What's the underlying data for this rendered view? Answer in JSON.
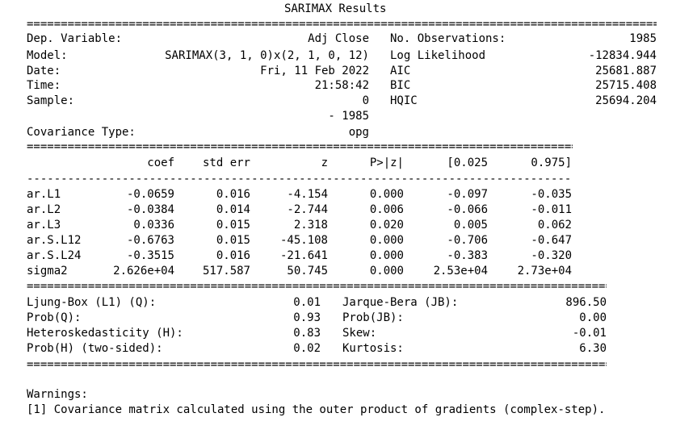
{
  "title": "SARIMAX Results",
  "summary": {
    "left": [
      {
        "label": "Dep. Variable:",
        "value": "Adj Close"
      },
      {
        "label": "Model:",
        "value": "SARIMAX(3, 1, 0)x(2, 1, 0, 12)"
      },
      {
        "label": "Date:",
        "value": "Fri, 11 Feb 2022"
      },
      {
        "label": "Time:",
        "value": "21:58:42"
      },
      {
        "label": "Sample:",
        "value": "0"
      },
      {
        "label": "",
        "value": "- 1985"
      },
      {
        "label": "Covariance Type:",
        "value": "opg"
      }
    ],
    "right": [
      {
        "label": "No. Observations:",
        "value": "1985"
      },
      {
        "label": "Log Likelihood",
        "value": "-12834.944"
      },
      {
        "label": "AIC",
        "value": "25681.887"
      },
      {
        "label": "BIC",
        "value": "25715.408"
      },
      {
        "label": "HQIC",
        "value": "25694.204"
      }
    ]
  },
  "coef_table": {
    "headers": [
      "coef",
      "std err",
      "z",
      "P>|z|",
      "[0.025",
      "0.975]"
    ],
    "rows": [
      {
        "name": "ar.L1",
        "values": [
          "-0.0659",
          "0.016",
          "-4.154",
          "0.000",
          "-0.097",
          "-0.035"
        ]
      },
      {
        "name": "ar.L2",
        "values": [
          "-0.0384",
          "0.014",
          "-2.744",
          "0.006",
          "-0.066",
          "-0.011"
        ]
      },
      {
        "name": "ar.L3",
        "values": [
          "0.0336",
          "0.015",
          "2.318",
          "0.020",
          "0.005",
          "0.062"
        ]
      },
      {
        "name": "ar.S.L12",
        "values": [
          "-0.6763",
          "0.015",
          "-45.108",
          "0.000",
          "-0.706",
          "-0.647"
        ]
      },
      {
        "name": "ar.S.L24",
        "values": [
          "-0.3515",
          "0.016",
          "-21.641",
          "0.000",
          "-0.383",
          "-0.320"
        ]
      },
      {
        "name": "sigma2",
        "values": [
          "2.626e+04",
          "517.587",
          "50.745",
          "0.000",
          "2.53e+04",
          "2.73e+04"
        ]
      }
    ]
  },
  "diagnostics": [
    {
      "left_label": "Ljung-Box (L1) (Q):",
      "left_value": "0.01",
      "right_label": "Jarque-Bera (JB):",
      "right_value": "896.50"
    },
    {
      "left_label": "Prob(Q):",
      "left_value": "0.93",
      "right_label": "Prob(JB):",
      "right_value": "0.00"
    },
    {
      "left_label": "Heteroskedasticity (H):",
      "left_value": "0.83",
      "right_label": "Skew:",
      "right_value": "-0.01"
    },
    {
      "left_label": "Prob(H) (two-sided):",
      "left_value": "0.02",
      "right_label": "Kurtosis:",
      "right_value": "6.30"
    }
  ],
  "warnings": {
    "heading": "Warnings:",
    "items": [
      "[1] Covariance matrix calculated using the outer product of gradients (complex-step)."
    ]
  }
}
